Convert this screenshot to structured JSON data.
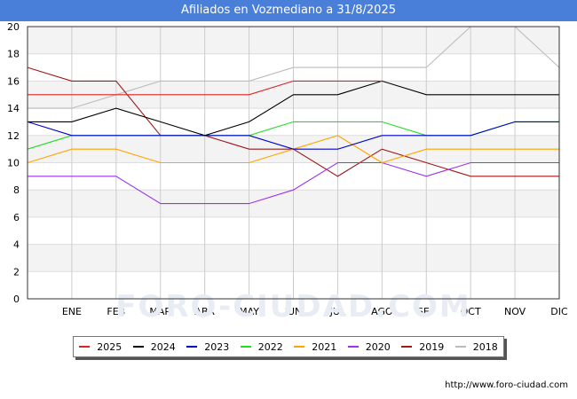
{
  "header": {
    "title": "Afiliados en Vozmediano a 31/8/2025"
  },
  "footer": {
    "source": "http://www.foro-ciudad.com"
  },
  "watermark": "FORO-CIUDAD.COM",
  "chart_data": {
    "type": "line",
    "title": "Afiliados en Vozmediano a 31/8/2025",
    "xlabel": "",
    "ylabel": "",
    "x_points": [
      "",
      "ENE",
      "FEB",
      "MAR",
      "ABR",
      "MAY",
      "JUN",
      "JUL",
      "AGO",
      "SEP",
      "OCT",
      "NOV",
      "DIC"
    ],
    "ylim": [
      0,
      20
    ],
    "yticks": [
      0,
      2,
      4,
      6,
      8,
      10,
      12,
      14,
      16,
      18,
      20
    ],
    "grid": true,
    "legend_position": "bottom",
    "series": [
      {
        "name": "2018",
        "color": "#bbbbbb",
        "values": [
          14,
          14,
          15,
          16,
          16,
          16,
          17,
          17,
          17,
          17,
          20,
          20,
          17
        ]
      },
      {
        "name": "2019",
        "color": "#a01818",
        "values": [
          17,
          16,
          16,
          12,
          12,
          11,
          11,
          9,
          11,
          10,
          9,
          9,
          9
        ]
      },
      {
        "name": "2020",
        "color": "#9933ee",
        "values": [
          9,
          9,
          9,
          7,
          7,
          7,
          8,
          10,
          10,
          9,
          10,
          10,
          10
        ]
      },
      {
        "name": "2021",
        "color": "#ffa500",
        "values": [
          10,
          11,
          11,
          10,
          10,
          10,
          11,
          12,
          10,
          11,
          11,
          11,
          11
        ]
      },
      {
        "name": "2022",
        "color": "#22dd22",
        "values": [
          11,
          12,
          12,
          12,
          12,
          12,
          13,
          13,
          13,
          12,
          12,
          13,
          13
        ]
      },
      {
        "name": "2023",
        "color": "#0000cc",
        "values": [
          13,
          12,
          12,
          12,
          12,
          12,
          11,
          11,
          12,
          12,
          12,
          13,
          13
        ]
      },
      {
        "name": "2024",
        "color": "#000000",
        "values": [
          13,
          13,
          14,
          13,
          12,
          13,
          15,
          15,
          16,
          15,
          15,
          15,
          15
        ]
      },
      {
        "name": "2025",
        "color": "#dd2222",
        "values": [
          15,
          15,
          15,
          15,
          15,
          15,
          16,
          16,
          16,
          null,
          null,
          null,
          null
        ]
      }
    ],
    "legend_order": [
      "2025",
      "2024",
      "2023",
      "2022",
      "2021",
      "2020",
      "2019",
      "2018"
    ]
  }
}
